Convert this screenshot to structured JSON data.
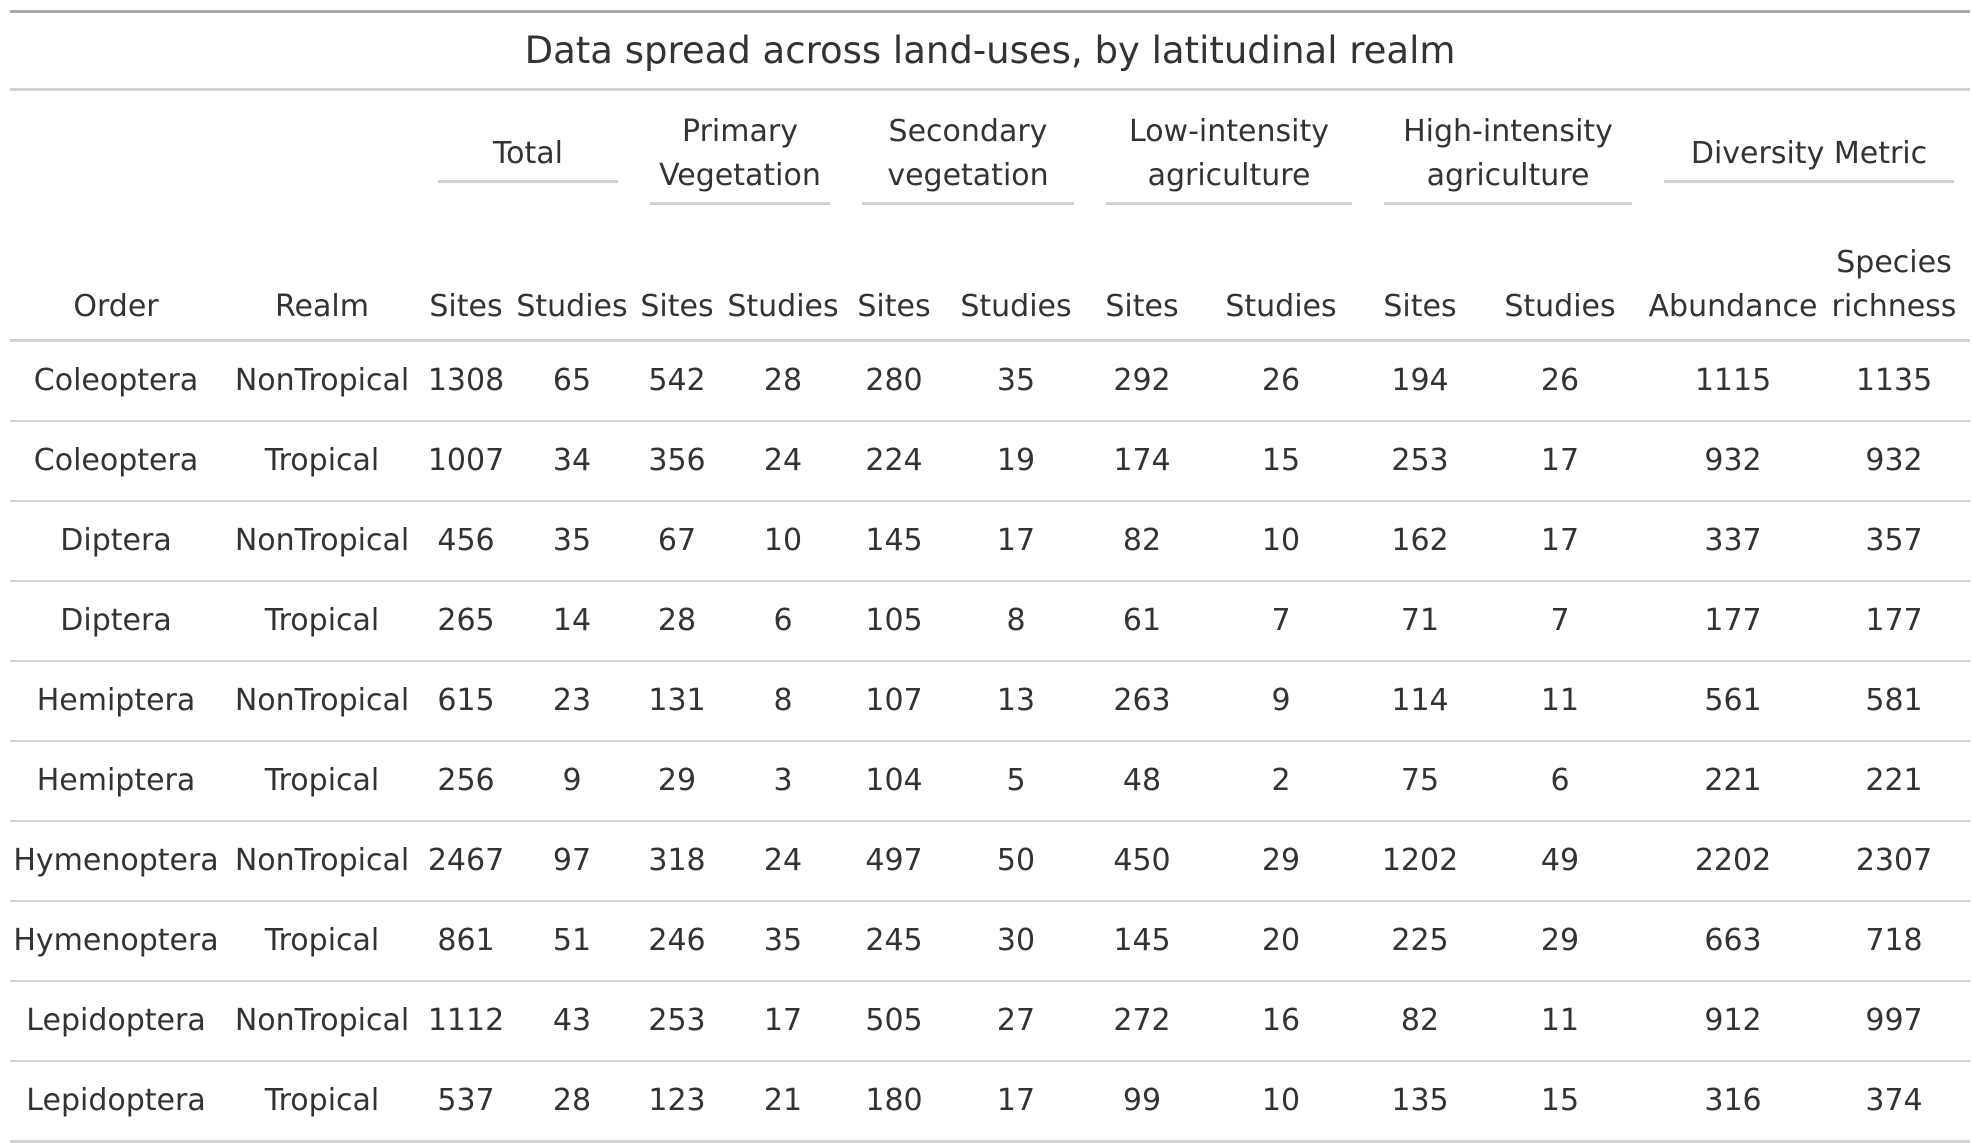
{
  "title": "Data spread across land-uses, by latitudinal realm",
  "spanners": [
    {
      "label": "Total",
      "colspan": 2
    },
    {
      "label": "Primary Vegetation",
      "colspan": 2
    },
    {
      "label": "Secondary vegetation",
      "colspan": 2
    },
    {
      "label": "Low-intensity agriculture",
      "colspan": 2
    },
    {
      "label": "High-intensity agriculture",
      "colspan": 2
    },
    {
      "label": "Diversity Metric",
      "colspan": 2
    }
  ],
  "columns": [
    "Order",
    "Realm",
    "Sites",
    "Studies",
    "Sites",
    "Studies",
    "Sites",
    "Studies",
    "Sites",
    "Studies",
    "Sites",
    "Studies",
    "Abundance",
    "Species richness"
  ],
  "rows": [
    [
      "Coleoptera",
      "NonTropical",
      "1308",
      "65",
      "542",
      "28",
      "280",
      "35",
      "292",
      "26",
      "194",
      "26",
      "1115",
      "1135"
    ],
    [
      "Coleoptera",
      "Tropical",
      "1007",
      "34",
      "356",
      "24",
      "224",
      "19",
      "174",
      "15",
      "253",
      "17",
      "932",
      "932"
    ],
    [
      "Diptera",
      "NonTropical",
      "456",
      "35",
      "67",
      "10",
      "145",
      "17",
      "82",
      "10",
      "162",
      "17",
      "337",
      "357"
    ],
    [
      "Diptera",
      "Tropical",
      "265",
      "14",
      "28",
      "6",
      "105",
      "8",
      "61",
      "7",
      "71",
      "7",
      "177",
      "177"
    ],
    [
      "Hemiptera",
      "NonTropical",
      "615",
      "23",
      "131",
      "8",
      "107",
      "13",
      "263",
      "9",
      "114",
      "11",
      "561",
      "581"
    ],
    [
      "Hemiptera",
      "Tropical",
      "256",
      "9",
      "29",
      "3",
      "104",
      "5",
      "48",
      "2",
      "75",
      "6",
      "221",
      "221"
    ],
    [
      "Hymenoptera",
      "NonTropical",
      "2467",
      "97",
      "318",
      "24",
      "497",
      "50",
      "450",
      "29",
      "1202",
      "49",
      "2202",
      "2307"
    ],
    [
      "Hymenoptera",
      "Tropical",
      "861",
      "51",
      "246",
      "35",
      "245",
      "30",
      "145",
      "20",
      "225",
      "29",
      "663",
      "718"
    ],
    [
      "Lepidoptera",
      "NonTropical",
      "1112",
      "43",
      "253",
      "17",
      "505",
      "27",
      "272",
      "16",
      "82",
      "11",
      "912",
      "997"
    ],
    [
      "Lepidoptera",
      "Tropical",
      "537",
      "28",
      "123",
      "21",
      "180",
      "17",
      "99",
      "10",
      "135",
      "15",
      "316",
      "374"
    ]
  ]
}
